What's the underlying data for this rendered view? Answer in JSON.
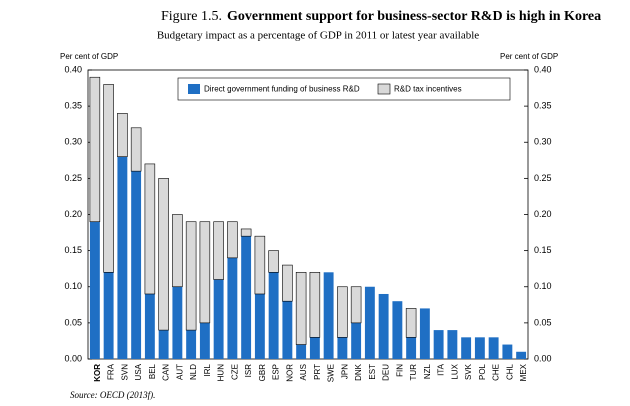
{
  "chart_data": {
    "type": "stacked_bar",
    "figure_label": "Figure 1.5.",
    "title": "Government support for business-sector R&D is high in Korea",
    "subtitle": "Budgetary impact as a percentage of GDP in 2011 or latest year available",
    "y_label": "Per cent of GDP",
    "y2_label": "Per cent of GDP",
    "source": "Source: OECD (2013f).",
    "categories": [
      "KOR",
      "FRA",
      "SVN",
      "USA",
      "BEL",
      "CAN",
      "AUT",
      "NLD",
      "IRL",
      "HUN",
      "CZE",
      "ISR",
      "GBR",
      "ESP",
      "NOR",
      "AUS",
      "PRT",
      "SWE",
      "JPN",
      "DNK",
      "EST",
      "DEU",
      "FIN",
      "TUR",
      "NZL",
      "ITA",
      "LUX",
      "SVK",
      "POL",
      "CHE",
      "CHL",
      "MEX"
    ],
    "series": [
      {
        "name": "Direct government funding of business R&D",
        "color": "#1f6fc4",
        "values": [
          0.19,
          0.12,
          0.28,
          0.26,
          0.09,
          0.04,
          0.1,
          0.04,
          0.05,
          0.11,
          0.14,
          0.17,
          0.09,
          0.12,
          0.08,
          0.02,
          0.03,
          0.12,
          0.03,
          0.05,
          0.1,
          0.09,
          0.08,
          0.03,
          0.07,
          0.04,
          0.04,
          0.03,
          0.03,
          0.03,
          0.02,
          0.01
        ]
      },
      {
        "name": "R&D tax incentives",
        "color": "#d9d9d9",
        "values": [
          0.2,
          0.26,
          0.06,
          0.06,
          0.18,
          0.21,
          0.1,
          0.15,
          0.14,
          0.08,
          0.05,
          0.01,
          0.08,
          0.03,
          0.05,
          0.1,
          0.09,
          0,
          0.07,
          0.05,
          0,
          0,
          0,
          0.04,
          0,
          0,
          0,
          0,
          0,
          0,
          0,
          0
        ]
      }
    ],
    "ylim": [
      0,
      0.4
    ],
    "yticks": [
      {
        "value": 0,
        "label": "0.00"
      },
      0.05,
      {
        "value": 0.1,
        "label": "0.10"
      },
      0.15,
      {
        "value": 0.2,
        "label": "0.20"
      },
      0.25,
      {
        "value": 0.3,
        "label": "0.30"
      },
      0.35,
      {
        "value": 0.4,
        "label": "0.40"
      }
    ],
    "y2lim": [
      0,
      0.4
    ],
    "y2ticks": [
      {
        "value": 0,
        "label": "0.00"
      },
      0.05,
      {
        "value": 0.1,
        "label": "0.10"
      },
      0.15,
      {
        "value": 0.2,
        "label": "0.20"
      },
      0.25,
      {
        "value": 0.3,
        "label": "0.30"
      },
      0.35,
      {
        "value": 0.4,
        "label": "0.40"
      }
    ],
    "legend": "top"
  }
}
